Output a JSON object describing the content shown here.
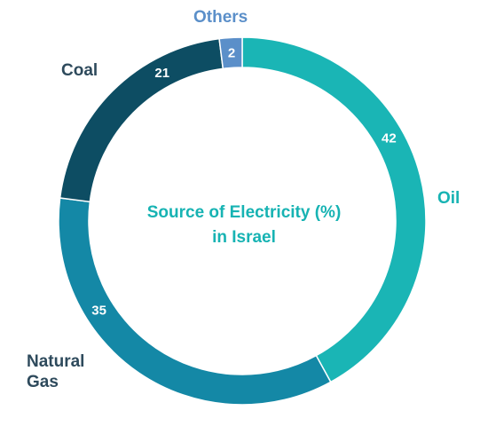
{
  "chart_data": {
    "type": "pie",
    "title": "Source of Electricity (%) in Israel",
    "title_lines": [
      "Source of Electricity (%)",
      "in Israel"
    ],
    "categories": [
      "Oil",
      "Natural Gas",
      "Coal",
      "Others"
    ],
    "values": [
      42,
      35,
      21,
      2
    ],
    "value_labels": [
      "42",
      "35",
      "21",
      "2"
    ],
    "category_labels": {
      "oil": "Oil",
      "natural_gas": "Natural Gas",
      "coal": "Coal",
      "others": "Others"
    },
    "donut": true,
    "colors": [
      "#1AB5B5",
      "#1488A6",
      "#0D4D63",
      "#5B8FC9"
    ],
    "title_color": "#17B3B3",
    "legend": "none"
  }
}
